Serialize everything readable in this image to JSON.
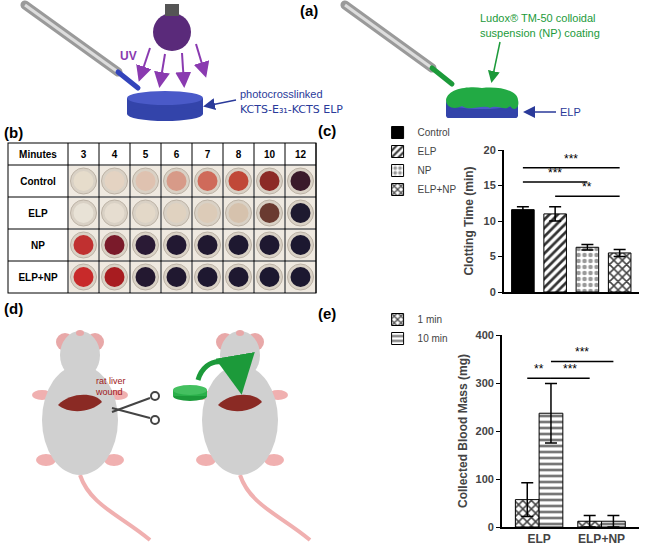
{
  "panels": {
    "a": {
      "label": "(a)",
      "uv": "UV",
      "left_text": [
        "photocrosslinked",
        "KCTS-E₃₁-KCTS ELP"
      ],
      "right_text": [
        "Ludox® TM-50 colloidal",
        "suspension (NP) coating"
      ],
      "right_arrow_text": "ELP"
    },
    "b": {
      "label": "(b)",
      "table": {
        "header": [
          "Minutes",
          "3",
          "4",
          "5",
          "6",
          "7",
          "8",
          "10",
          "12"
        ],
        "rows": [
          {
            "label": "Control",
            "colors": [
              "#e6dccb",
              "#e4d3c2",
              "#dfc2b0",
              "#d79a88",
              "#cf6a5a",
              "#c04838",
              "#8c2a26",
              "#3a1a2a"
            ]
          },
          {
            "label": "ELP",
            "colors": [
              "#e8e2d6",
              "#e6ddd0",
              "#e3d8c8",
              "#e0d2c0",
              "#dccbb8",
              "#d6c2ad",
              "#6a3a30",
              "#1e1a30"
            ]
          },
          {
            "label": "NP",
            "colors": [
              "#c03030",
              "#7a1a2a",
              "#2a1a35",
              "#221832",
              "#201830",
              "#1e1830",
              "#1e1830",
              "#1c1830"
            ]
          },
          {
            "label": "ELP+NP",
            "colors": [
              "#c82a2a",
              "#a81c20",
              "#231830",
              "#201830",
              "#1e1830",
              "#1e1830",
              "#1c1830",
              "#1c1830"
            ]
          }
        ]
      }
    },
    "c": {
      "label": "(c)"
    },
    "d": {
      "label": "(d)",
      "texts": [
        "rat liver",
        "wound"
      ]
    },
    "e": {
      "label": "(e)"
    }
  },
  "chart_data": [
    {
      "type": "bar",
      "ylabel": "Clotting Time (min)",
      "ylim": [
        0,
        20
      ],
      "yticks": [
        0,
        5,
        10,
        15,
        20
      ],
      "tick_labels": "y",
      "legend": "top left",
      "series": [
        {
          "name": "Control",
          "color": "#000000",
          "marker": "solid",
          "values": [
            11.6
          ],
          "error": [
            0.4
          ]
        },
        {
          "name": "ELP",
          "color": "#333333",
          "marker": "diagonal",
          "values": [
            11.0
          ],
          "error": [
            1.0
          ]
        },
        {
          "name": "NP",
          "color": "#999999",
          "marker": "dots",
          "values": [
            6.3
          ],
          "error": [
            0.4
          ]
        },
        {
          "name": "ELP+NP",
          "color": "#444444",
          "marker": "crosshatch",
          "values": [
            5.5
          ],
          "error": [
            0.5
          ]
        }
      ],
      "annotations": [
        {
          "from": "Control",
          "to": "ELP+NP",
          "y": 17.5,
          "text": "***"
        },
        {
          "from": "Control",
          "to": "NP",
          "y": 15.5,
          "text": "***"
        },
        {
          "from": "ELP",
          "to": "ELP+NP",
          "y": 13.5,
          "text": "**"
        }
      ]
    },
    {
      "type": "bar",
      "ylabel": "Collected Blood Mass (mg)",
      "categories": [
        "ELP",
        "ELP+NP"
      ],
      "ylim": [
        0,
        400
      ],
      "yticks": [
        0,
        100,
        200,
        300,
        400
      ],
      "legend": "top left",
      "series": [
        {
          "name": "1 min",
          "color": "#444444",
          "marker": "crosshatch",
          "values": [
            57,
            12
          ],
          "error": [
            35,
            12
          ]
        },
        {
          "name": "10 min",
          "color": "#777777",
          "marker": "horizontal",
          "values": [
            237,
            12
          ],
          "error": [
            62,
            12
          ]
        }
      ],
      "annotations": [
        {
          "from": [
            "ELP",
            "1 min"
          ],
          "to": [
            "ELP",
            "10 min"
          ],
          "y": 310,
          "text": "**"
        },
        {
          "from": [
            "ELP",
            "10 min"
          ],
          "to": [
            "ELP+NP",
            "1 min"
          ],
          "y": 310,
          "text": "***"
        },
        {
          "from": [
            "ELP",
            "10 min"
          ],
          "to": [
            "ELP+NP",
            "10 min"
          ],
          "y": 345,
          "text": "***"
        }
      ]
    }
  ]
}
